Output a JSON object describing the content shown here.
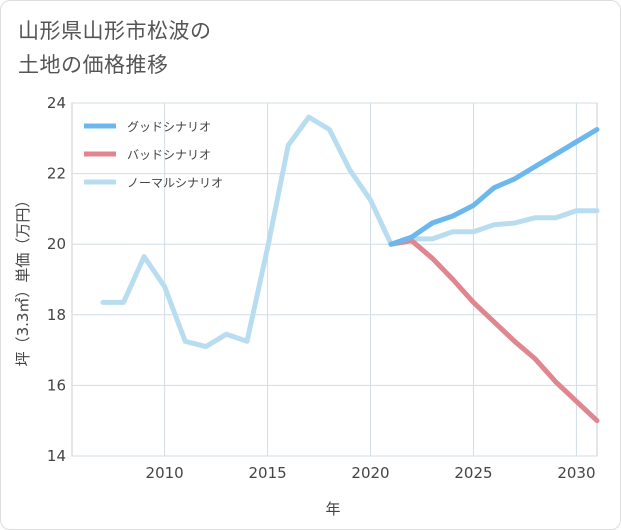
{
  "title_lines": [
    "山形県山形市松波の",
    "土地の価格推移"
  ],
  "chart_data": {
    "type": "line",
    "title": "山形県山形市松波の土地の価格推移",
    "xlabel": "年",
    "ylabel": "坪（3.3㎡）単価（万円）",
    "xlim": [
      2005.5,
      2031
    ],
    "ylim": [
      14,
      24
    ],
    "xticks": [
      2010,
      2015,
      2020,
      2025,
      2030
    ],
    "yticks": [
      14,
      16,
      18,
      20,
      22,
      24
    ],
    "grid": true,
    "legend_position": "top-left",
    "series": [
      {
        "name": "グッドシナリオ",
        "color": "#6cb8ee",
        "x": [
          2021,
          2022,
          2023,
          2024,
          2025,
          2026,
          2027,
          2028,
          2029,
          2030,
          2031
        ],
        "values": [
          20.0,
          20.2,
          20.6,
          20.8,
          21.1,
          21.6,
          21.85,
          22.2,
          22.55,
          22.9,
          23.25
        ]
      },
      {
        "name": "バッドシナリオ",
        "color": "#e0868f",
        "x": [
          2021,
          2022,
          2023,
          2024,
          2025,
          2026,
          2027,
          2028,
          2029,
          2030,
          2031
        ],
        "values": [
          20.0,
          20.1,
          19.6,
          19.0,
          18.35,
          17.8,
          17.25,
          16.75,
          16.1,
          15.55,
          15.0
        ]
      },
      {
        "name": "ノーマルシナリオ",
        "color": "#b8ddf0",
        "x": [
          2007,
          2008,
          2009,
          2010,
          2011,
          2012,
          2013,
          2014,
          2015,
          2016,
          2017,
          2018,
          2019,
          2020,
          2021,
          2022,
          2023,
          2024,
          2025,
          2026,
          2027,
          2028,
          2029,
          2030,
          2031
        ],
        "values": [
          18.35,
          18.35,
          19.65,
          18.8,
          17.25,
          17.1,
          17.45,
          17.25,
          19.9,
          22.8,
          23.6,
          23.25,
          22.1,
          21.25,
          20.0,
          20.15,
          20.15,
          20.35,
          20.35,
          20.55,
          20.6,
          20.75,
          20.75,
          20.95,
          20.95
        ]
      }
    ]
  }
}
